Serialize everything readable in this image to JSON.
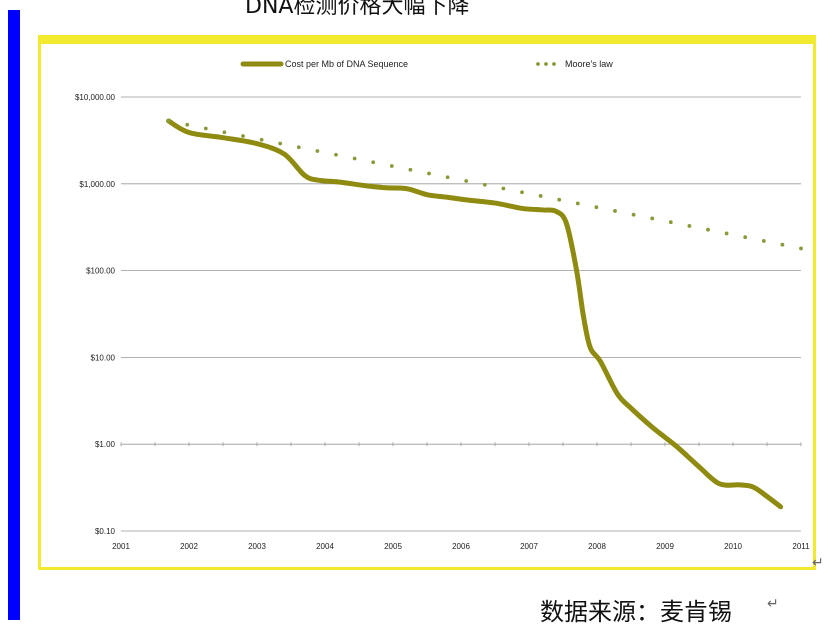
{
  "heading": "DNA检测价格大幅下降",
  "source": "数据来源：麦肯锡",
  "paragraph_mark": "↵",
  "colors": {
    "frame": "#f2ea2f",
    "side_bar": "#0000ff",
    "cost_line": "#8f8a10",
    "moore_dots": "#8a9a3a",
    "grid": "#999999"
  },
  "chart_data": {
    "type": "line",
    "title": "",
    "xlabel": "",
    "ylabel": "",
    "yscale": "log",
    "ylim": [
      0.1,
      10000
    ],
    "xlim": [
      2001,
      2011
    ],
    "y_ticks": [
      {
        "value": 10000,
        "label": "$10,000.00"
      },
      {
        "value": 1000,
        "label": "$1,000.00"
      },
      {
        "value": 100,
        "label": "$100.00"
      },
      {
        "value": 10,
        "label": "$10.00"
      },
      {
        "value": 1,
        "label": "$1.00"
      },
      {
        "value": 0.1,
        "label": "$0.10"
      }
    ],
    "x_ticks": [
      {
        "value": 2001,
        "label": "2001"
      },
      {
        "value": 2002,
        "label": "2002"
      },
      {
        "value": 2003,
        "label": "2003"
      },
      {
        "value": 2004,
        "label": "2004"
      },
      {
        "value": 2005,
        "label": "2005"
      },
      {
        "value": 2006,
        "label": "2006"
      },
      {
        "value": 2007,
        "label": "2007"
      },
      {
        "value": 2008,
        "label": "2008"
      },
      {
        "value": 2009,
        "label": "2009"
      },
      {
        "value": 2010,
        "label": "2010"
      },
      {
        "value": 2011,
        "label": "2011"
      }
    ],
    "legend_position": "top-center",
    "grid": true,
    "series": [
      {
        "name": "Cost per Mb of DNA Sequence",
        "style": "solid-thick",
        "color": "#8f8a10",
        "points": [
          [
            2001.7,
            5292
          ],
          [
            2002.0,
            3900
          ],
          [
            2002.5,
            3400
          ],
          [
            2003.0,
            2900
          ],
          [
            2003.4,
            2200
          ],
          [
            2003.7,
            1250
          ],
          [
            2003.9,
            1100
          ],
          [
            2004.2,
            1050
          ],
          [
            2004.6,
            950
          ],
          [
            2004.9,
            900
          ],
          [
            2005.2,
            880
          ],
          [
            2005.5,
            750
          ],
          [
            2005.8,
            700
          ],
          [
            2006.1,
            650
          ],
          [
            2006.5,
            600
          ],
          [
            2006.9,
            520
          ],
          [
            2007.2,
            500
          ],
          [
            2007.4,
            480
          ],
          [
            2007.55,
            350
          ],
          [
            2007.7,
            100
          ],
          [
            2007.8,
            30
          ],
          [
            2007.9,
            13
          ],
          [
            2008.05,
            9
          ],
          [
            2008.3,
            3.8
          ],
          [
            2008.5,
            2.6
          ],
          [
            2008.8,
            1.6
          ],
          [
            2009.0,
            1.2
          ],
          [
            2009.2,
            0.9
          ],
          [
            2009.5,
            0.55
          ],
          [
            2009.8,
            0.35
          ],
          [
            2010.1,
            0.34
          ],
          [
            2010.3,
            0.32
          ],
          [
            2010.5,
            0.25
          ],
          [
            2010.7,
            0.19
          ]
        ]
      },
      {
        "name": "Moore's law",
        "style": "dotted",
        "color": "#8a9a3a",
        "points": [
          [
            2001.7,
            5292
          ],
          [
            2011.0,
            180
          ]
        ]
      }
    ]
  }
}
